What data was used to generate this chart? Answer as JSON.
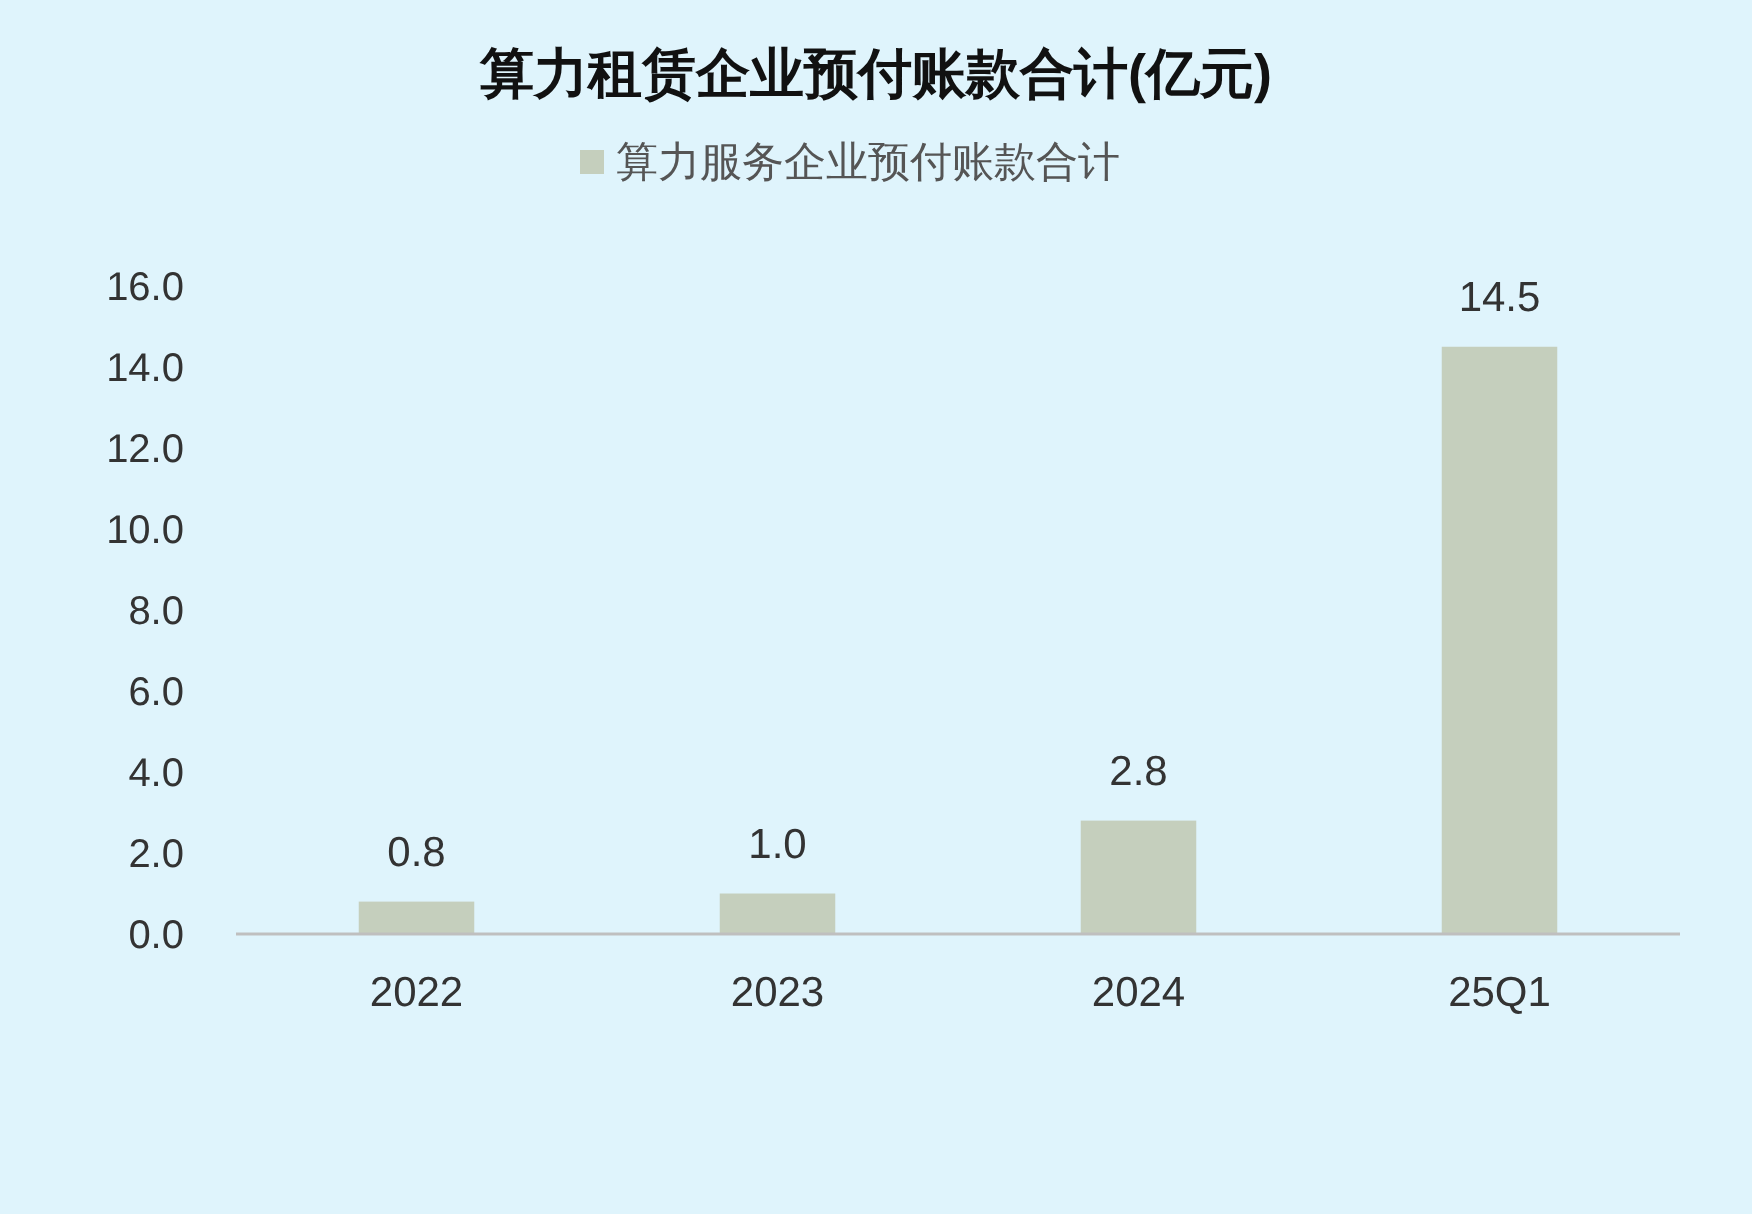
{
  "chart_data": {
    "type": "bar",
    "title": "算力租赁企业预付账款合计(亿元)",
    "categories": [
      "2022",
      "2023",
      "2024",
      "25Q1"
    ],
    "series": [
      {
        "name": "算力服务企业预付账款合计",
        "color": "#c5cfbd",
        "values": [
          0.8,
          1.0,
          2.8,
          14.5
        ],
        "value_labels": [
          "0.8",
          "1.0",
          "2.8",
          "14.5"
        ]
      }
    ],
    "ylim": [
      0,
      16
    ],
    "yticks": [
      {
        "value": 0,
        "label": "0.0"
      },
      {
        "value": 2,
        "label": "2.0"
      },
      {
        "value": 4,
        "label": "4.0"
      },
      {
        "value": 6,
        "label": "6.0"
      },
      {
        "value": 8,
        "label": "8.0"
      },
      {
        "value": 10,
        "label": "10.0"
      },
      {
        "value": 12,
        "label": "12.0"
      },
      {
        "value": 14,
        "label": "14.0"
      },
      {
        "value": 16,
        "label": "16.0"
      }
    ],
    "grid": false,
    "legend": "top"
  }
}
